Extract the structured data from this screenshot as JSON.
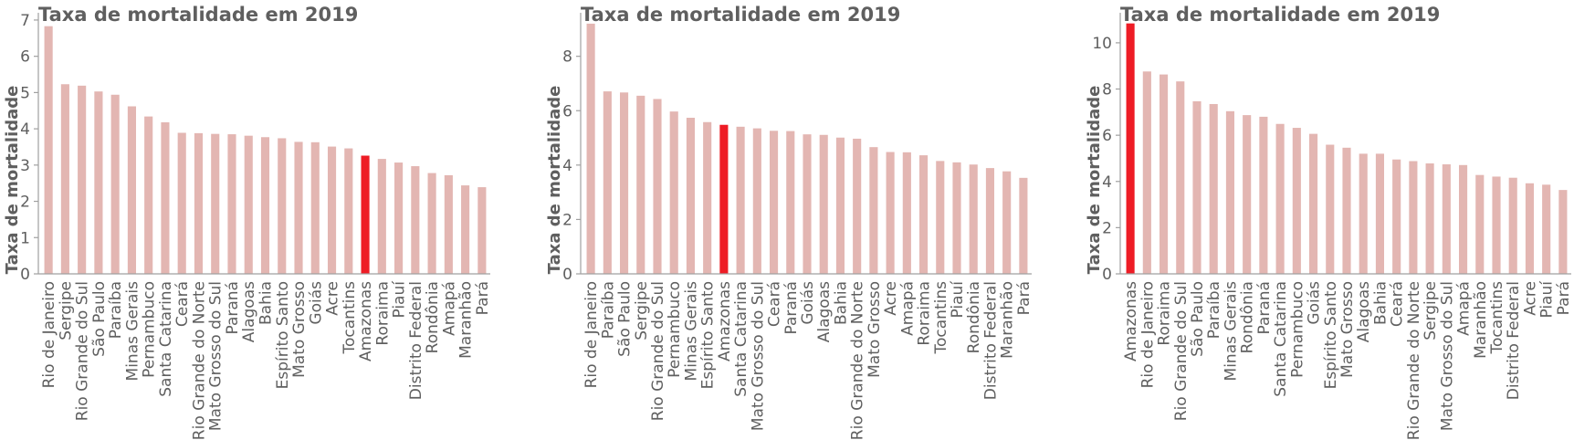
{
  "colors": {
    "bar": "#e3b6b2",
    "highlight": "#ee1c25",
    "text": "#5f5f5f",
    "axis": "#a0a0a0"
  },
  "chart_data": [
    {
      "type": "bar",
      "title": "Taxa de mortalidade em 2019",
      "xlabel": "",
      "ylabel": "Taxa de mortalidade",
      "ylim": [
        0,
        7.2
      ],
      "yticks": [
        0,
        1,
        2,
        3,
        4,
        5,
        6,
        7
      ],
      "highlight": "Amazonas",
      "categories": [
        "Rio de Janeiro",
        "Sergipe",
        "Rio Grande do Sul",
        "São Paulo",
        "Paraíba",
        "Minas Gerais",
        "Pernambuco",
        "Santa Catarina",
        "Ceará",
        "Rio Grande do Norte",
        "Mato Grosso do Sul",
        "Paraná",
        "Alagoas",
        "Bahia",
        "Espírito Santo",
        "Mato Grosso",
        "Goiás",
        "Acre",
        "Tocantins",
        "Amazonas",
        "Roraima",
        "Piauí",
        "Distrito Federal",
        "Rondônia",
        "Amapá",
        "Maranhão",
        "Pará"
      ],
      "values": [
        6.83,
        5.23,
        5.19,
        5.03,
        4.94,
        4.62,
        4.34,
        4.18,
        3.89,
        3.88,
        3.86,
        3.85,
        3.81,
        3.77,
        3.74,
        3.64,
        3.63,
        3.51,
        3.46,
        3.26,
        3.17,
        3.07,
        2.97,
        2.78,
        2.72,
        2.44,
        2.39
      ]
    },
    {
      "type": "bar",
      "title": "Taxa de mortalidade em 2019",
      "xlabel": "",
      "ylabel": "Taxa de mortalidade",
      "ylim": [
        0,
        9.6
      ],
      "yticks": [
        0,
        2,
        4,
        6,
        8
      ],
      "highlight": "Amazonas",
      "categories": [
        "Rio de Janeiro",
        "Paraíba",
        "São Paulo",
        "Sergipe",
        "Rio Grande do Sul",
        "Pernambuco",
        "Minas Gerais",
        "Espírito Santo",
        "Amazonas",
        "Santa Catarina",
        "Mato Grosso do Sul",
        "Ceará",
        "Paraná",
        "Goiás",
        "Alagoas",
        "Bahia",
        "Rio Grande do Norte",
        "Mato Grosso",
        "Acre",
        "Amapá",
        "Roraima",
        "Tocantins",
        "Piauí",
        "Rondônia",
        "Distrito Federal",
        "Maranhão",
        "Pará"
      ],
      "values": [
        9.2,
        6.71,
        6.67,
        6.55,
        6.43,
        5.97,
        5.74,
        5.58,
        5.48,
        5.41,
        5.35,
        5.26,
        5.25,
        5.13,
        5.11,
        5.01,
        4.97,
        4.66,
        4.48,
        4.47,
        4.36,
        4.15,
        4.1,
        4.02,
        3.89,
        3.77,
        3.53
      ]
    },
    {
      "type": "bar",
      "title": "Taxa de mortalidade em 2019",
      "xlabel": "",
      "ylabel": "Taxa de mortalidade",
      "ylim": [
        0,
        11.3
      ],
      "yticks": [
        0,
        2,
        4,
        6,
        8,
        10
      ],
      "highlight": "Amazonas",
      "categories": [
        "Amazonas",
        "Rio de Janeiro",
        "Roraima",
        "Rio Grande do Sul",
        "São Paulo",
        "Paraíba",
        "Minas Gerais",
        "Rondônia",
        "Paraná",
        "Santa Catarina",
        "Pernambuco",
        "Goiás",
        "Espírito Santo",
        "Mato Grosso",
        "Alagoas",
        "Bahia",
        "Ceará",
        "Rio Grande do Norte",
        "Sergipe",
        "Mato Grosso do Sul",
        "Amapá",
        "Maranhão",
        "Tocantins",
        "Distrito Federal",
        "Acre",
        "Piauí",
        "Pará"
      ],
      "values": [
        10.84,
        8.76,
        8.63,
        8.33,
        7.47,
        7.35,
        7.04,
        6.87,
        6.8,
        6.49,
        6.32,
        6.06,
        5.59,
        5.46,
        5.2,
        5.2,
        4.95,
        4.88,
        4.78,
        4.74,
        4.71,
        4.28,
        4.21,
        4.16,
        3.92,
        3.86,
        3.63
      ]
    }
  ]
}
